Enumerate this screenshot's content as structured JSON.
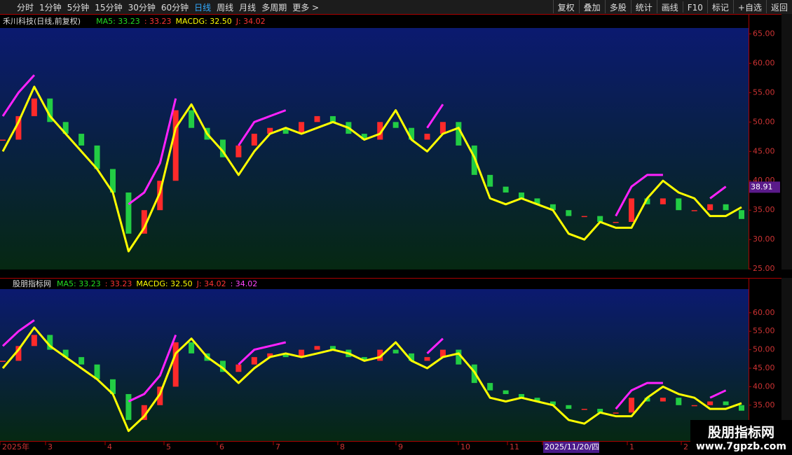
{
  "toolbar": {
    "left": [
      "分时",
      "1分钟",
      "5分钟",
      "15分钟",
      "30分钟",
      "60分钟",
      "日线",
      "周线",
      "月线",
      "多周期",
      "更多 >"
    ],
    "active": 6,
    "right": [
      "复权",
      "叠加",
      "多股",
      "统计",
      "画线",
      "F10",
      "标记",
      "+自选",
      "返回"
    ]
  },
  "chart_data": [
    {
      "type": "candle",
      "title": "禾川科技(日线,前复权)",
      "legend": [
        {
          "text": "MA5: 33.23",
          "color": "#22dd22"
        },
        {
          "text": ": 33.23",
          "color": "#ff3333"
        },
        {
          "text": "MACDG: 32.50",
          "color": "#ffff00"
        },
        {
          "text": "J: 34.02",
          "color": "#ff3333"
        }
      ],
      "ylim": [
        24.9,
        66
      ],
      "yticks": [
        {
          "value": 25,
          "label": "25.00"
        },
        {
          "value": 30,
          "label": "30.00"
        },
        {
          "value": 35,
          "label": "35.00"
        },
        {
          "value": 40,
          "label": "40.00"
        },
        {
          "value": 45,
          "label": "45.00"
        },
        {
          "value": 50,
          "label": "50.00"
        },
        {
          "value": 55,
          "label": "55.00"
        },
        {
          "value": 60,
          "label": "60.00"
        },
        {
          "value": 65,
          "label": "65.00"
        }
      ],
      "price_marker": 38.91,
      "values": [
        47,
        51,
        54,
        50,
        48,
        46,
        42,
        38,
        31,
        35,
        40,
        52,
        49,
        47,
        44,
        46,
        48,
        49,
        48,
        50,
        51,
        50,
        48,
        47,
        50,
        49,
        47,
        48,
        50,
        46,
        41,
        39,
        38,
        37,
        36,
        35,
        34,
        34,
        33,
        33,
        37,
        36,
        37,
        35,
        35,
        36,
        35,
        33.5
      ],
      "series": [
        {
          "color": "#ffff00",
          "values": [
            45,
            50,
            56,
            51,
            48,
            45,
            42,
            38,
            28,
            32,
            38,
            49,
            53,
            48,
            45,
            41,
            45,
            48,
            49,
            48,
            49,
            50,
            49,
            47,
            48,
            52,
            47,
            45,
            48,
            49,
            44,
            37,
            36,
            37,
            36,
            35,
            31,
            30,
            33,
            32,
            32,
            37,
            40,
            38,
            37,
            34,
            34,
            35.5
          ]
        },
        {
          "color": "#ff22ff",
          "values": [
            51,
            55,
            58,
            null,
            null,
            null,
            null,
            null,
            36,
            38,
            43,
            54,
            null,
            null,
            null,
            46,
            50,
            51,
            52,
            null,
            null,
            null,
            null,
            null,
            53,
            null,
            null,
            49,
            53,
            null,
            null,
            null,
            null,
            null,
            null,
            null,
            null,
            35,
            null,
            34,
            39,
            41,
            41,
            null,
            null,
            37,
            39,
            null
          ]
        }
      ]
    },
    {
      "type": "candle",
      "title": "股朋指标网",
      "legend": [
        {
          "text": "MA5: 33.23",
          "color": "#22dd22"
        },
        {
          "text": ": 33.23",
          "color": "#ff3333"
        },
        {
          "text": "MACDG: 32.50",
          "color": "#ffff00"
        },
        {
          "text": "J: 34.02",
          "color": "#ff3333"
        },
        {
          "text": ": 34.02",
          "color": "#ff44ff"
        }
      ],
      "ylim": [
        25.3,
        66.4
      ],
      "yticks": [
        {
          "value": 35,
          "label": "35.00"
        },
        {
          "value": 40,
          "label": "40.00"
        },
        {
          "value": 45,
          "label": "45.00"
        },
        {
          "value": 50,
          "label": "50.00"
        },
        {
          "value": 55,
          "label": "55.00"
        },
        {
          "value": 60,
          "label": "60.00"
        }
      ],
      "values": [
        47,
        51,
        54,
        50,
        48,
        46,
        42,
        38,
        31,
        35,
        40,
        52,
        49,
        47,
        44,
        46,
        48,
        49,
        48,
        50,
        51,
        50,
        48,
        47,
        50,
        49,
        47,
        48,
        50,
        46,
        41,
        39,
        38,
        37,
        36,
        35,
        34,
        34,
        33,
        33,
        37,
        36,
        37,
        35,
        35,
        36,
        35,
        33.5
      ],
      "series": [
        {
          "color": "#ffff00",
          "values": [
            45,
            50,
            56,
            51,
            48,
            45,
            42,
            38,
            28,
            32,
            38,
            49,
            53,
            48,
            45,
            41,
            45,
            48,
            49,
            48,
            49,
            50,
            49,
            47,
            48,
            52,
            47,
            45,
            48,
            49,
            44,
            37,
            36,
            37,
            36,
            35,
            31,
            30,
            33,
            32,
            32,
            37,
            40,
            38,
            37,
            34,
            34,
            35.5
          ]
        },
        {
          "color": "#ff22ff",
          "values": [
            51,
            55,
            58,
            null,
            null,
            null,
            null,
            null,
            36,
            38,
            43,
            54,
            null,
            null,
            null,
            46,
            50,
            51,
            52,
            null,
            null,
            null,
            null,
            null,
            53,
            null,
            null,
            49,
            53,
            null,
            null,
            null,
            null,
            null,
            null,
            null,
            null,
            35,
            null,
            34,
            39,
            41,
            41,
            null,
            null,
            37,
            39,
            null
          ]
        }
      ]
    }
  ],
  "x_axis": {
    "labels": [
      "2025年",
      "3",
      "4",
      "5",
      "6",
      "7",
      "8",
      "9",
      "10",
      "11",
      "2025/11/20/四",
      "1",
      "2"
    ]
  },
  "watermark": {
    "title": "股朋指标网",
    "url": "www.7gpzb.com"
  }
}
